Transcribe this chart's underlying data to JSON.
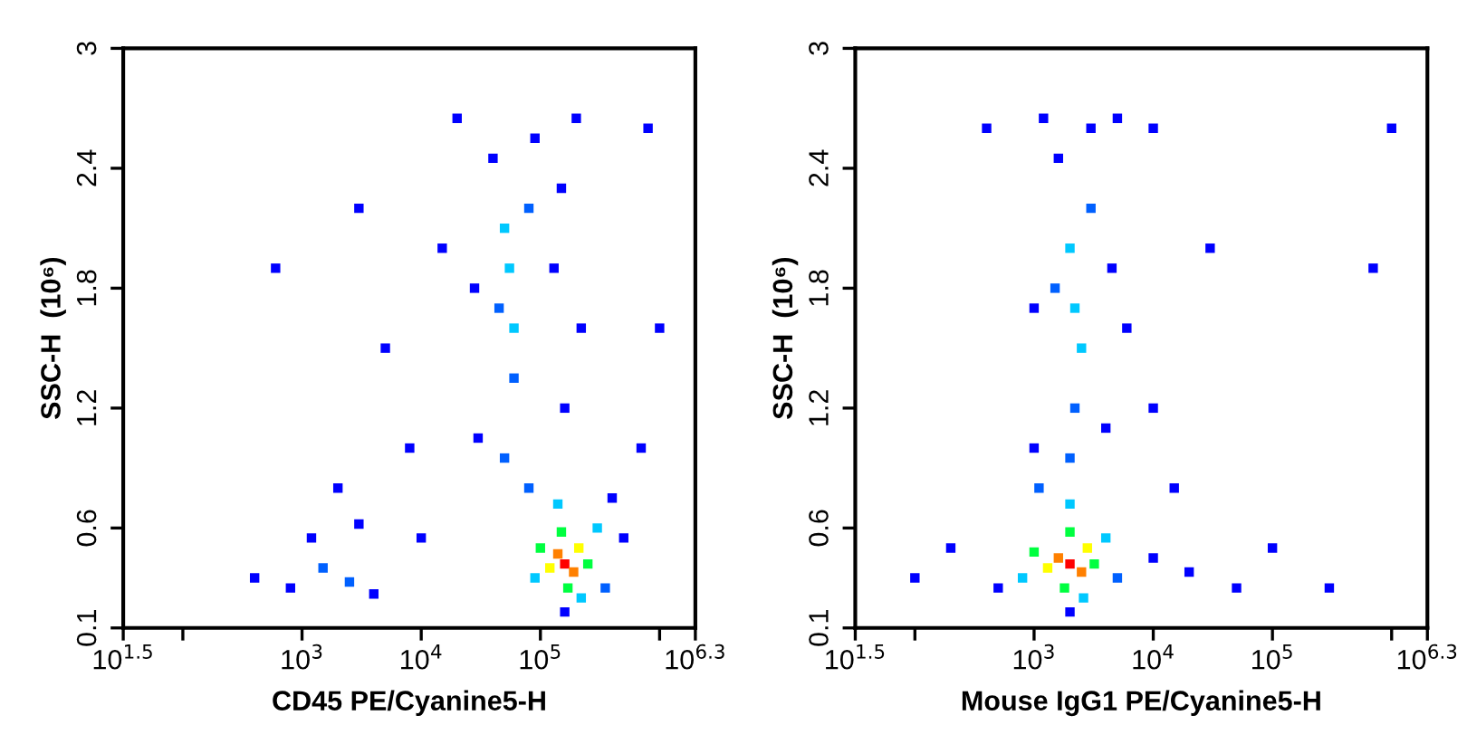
{
  "chart_data": [
    {
      "type": "scatter",
      "xlabel": "CD45 PE/Cyanine5-H",
      "ylabel": "SSC-H  (10⁶)",
      "log": "x",
      "marker": "square",
      "grid": false,
      "xlim": [
        31.6,
        1995262
      ],
      "ylim": [
        0.1,
        3
      ],
      "xticks": [
        {
          "value": 31.6,
          "label": "10$^{1.5}$"
        },
        {
          "value": 100,
          "label": null
        },
        {
          "value": 1000,
          "label": "10$^{3}$"
        },
        {
          "value": 10000,
          "label": "10$^{4}$"
        },
        {
          "value": 100000,
          "label": "10$^{5}$"
        },
        {
          "value": 1000000,
          "label": null
        },
        {
          "value": 1995262,
          "label": "10$^{6.3}$"
        }
      ],
      "yticks": [
        0.1,
        0.6,
        1.2,
        1.8,
        2.4,
        3
      ],
      "x": [
        160000,
        140000,
        190000,
        120000,
        210000,
        150000,
        100000,
        250000,
        170000,
        140000,
        90000,
        300000,
        220000,
        80000,
        350000,
        160000,
        400000,
        55000,
        60000,
        50000,
        60000,
        45000,
        80000,
        40000,
        90000,
        28000,
        130000,
        150000,
        20000,
        200000,
        30000,
        160000,
        220000,
        50000,
        1500,
        2500,
        1200,
        3000,
        800,
        4000,
        2000,
        8000,
        5000,
        400,
        10000,
        3000,
        600,
        500000,
        700000,
        1000000,
        800000,
        15000
      ],
      "values": [
        0.42,
        0.47,
        0.38,
        0.4,
        0.5,
        0.58,
        0.5,
        0.42,
        0.3,
        0.72,
        0.35,
        0.6,
        0.25,
        0.8,
        0.3,
        0.18,
        0.75,
        1.9,
        1.6,
        2.1,
        1.35,
        1.7,
        2.2,
        2.45,
        2.55,
        1.8,
        1.9,
        2.3,
        2.65,
        2.65,
        1.05,
        1.2,
        1.6,
        0.95,
        0.4,
        0.33,
        0.55,
        0.62,
        0.3,
        0.27,
        0.8,
        1.0,
        1.5,
        0.35,
        0.55,
        2.2,
        1.9,
        0.55,
        1.0,
        1.6,
        2.6,
        2.0
      ],
      "colors": [
        "#ff0000",
        "#ff8000",
        "#ff8000",
        "#ffff00",
        "#ffff00",
        "#00ff40",
        "#00ff40",
        "#00ff40",
        "#00ff40",
        "#00c8ff",
        "#00c8ff",
        "#00c8ff",
        "#00c8ff",
        "#0060ff",
        "#0060ff",
        "#0000ff",
        "#0000ff",
        "#00c8ff",
        "#00c8ff",
        "#00c8ff",
        "#0060ff",
        "#0060ff",
        "#0060ff",
        "#0000ff",
        "#0000ff",
        "#0000ff",
        "#0000ff",
        "#0000ff",
        "#0000ff",
        "#0000ff",
        "#0000ff",
        "#0000ff",
        "#0000ff",
        "#0060ff",
        "#0060ff",
        "#0060ff",
        "#0000ff",
        "#0000ff",
        "#0000ff",
        "#0000ff",
        "#0000ff",
        "#0000ff",
        "#0000ff",
        "#0000ff",
        "#0000ff",
        "#0000ff",
        "#0000ff",
        "#0000ff",
        "#0000ff",
        "#0000ff",
        "#0000ff",
        "#0000ff"
      ]
    },
    {
      "type": "scatter",
      "xlabel": "Mouse IgG1 PE/Cyanine5-H",
      "ylabel": "SSC-H  (10⁶)",
      "log": "x",
      "marker": "square",
      "grid": false,
      "xlim": [
        31.6,
        1995262
      ],
      "ylim": [
        0.1,
        3
      ],
      "xticks": [
        {
          "value": 31.6,
          "label": "10$^{1.5}$"
        },
        {
          "value": 100,
          "label": null
        },
        {
          "value": 1000,
          "label": "10$^{3}$"
        },
        {
          "value": 10000,
          "label": "10$^{4}$"
        },
        {
          "value": 100000,
          "label": "10$^{5}$"
        },
        {
          "value": 1000000,
          "label": null
        },
        {
          "value": 1995262,
          "label": "10$^{6.3}$"
        }
      ],
      "yticks": [
        0.1,
        0.6,
        1.2,
        1.8,
        2.4,
        3
      ],
      "x": [
        2000,
        1600,
        2500,
        1300,
        2800,
        2000,
        1000,
        3200,
        1800,
        2000,
        800,
        4000,
        2600,
        1100,
        5000,
        2000,
        500,
        2200,
        2500,
        2000,
        2200,
        1500,
        3000,
        1600,
        3000,
        1000,
        4500,
        1200,
        5000,
        1000,
        4000,
        6000,
        2000,
        100,
        200,
        10000,
        20000,
        50000,
        10000,
        30000,
        100000,
        300000,
        1000000,
        700000,
        400,
        15000,
        10000
      ],
      "values": [
        0.42,
        0.45,
        0.38,
        0.4,
        0.5,
        0.58,
        0.48,
        0.42,
        0.3,
        0.72,
        0.35,
        0.55,
        0.25,
        0.8,
        0.35,
        0.18,
        0.3,
        1.7,
        1.5,
        2.0,
        1.2,
        1.8,
        2.2,
        2.45,
        2.6,
        1.7,
        1.9,
        2.65,
        2.65,
        1.0,
        1.1,
        1.6,
        0.95,
        0.35,
        0.5,
        0.45,
        0.38,
        0.3,
        1.2,
        2.0,
        0.5,
        0.3,
        2.6,
        1.9,
        2.6,
        0.8,
        2.6
      ],
      "colors": [
        "#ff0000",
        "#ff8000",
        "#ff8000",
        "#ffff00",
        "#ffff00",
        "#00ff40",
        "#00ff40",
        "#00ff40",
        "#00ff40",
        "#00c8ff",
        "#00c8ff",
        "#00c8ff",
        "#00c8ff",
        "#0060ff",
        "#0060ff",
        "#0000ff",
        "#0000ff",
        "#00c8ff",
        "#00c8ff",
        "#00c8ff",
        "#0060ff",
        "#0060ff",
        "#0060ff",
        "#0000ff",
        "#0000ff",
        "#0000ff",
        "#0000ff",
        "#0000ff",
        "#0000ff",
        "#0000ff",
        "#0000ff",
        "#0000ff",
        "#0060ff",
        "#0000ff",
        "#0000ff",
        "#0000ff",
        "#0000ff",
        "#0000ff",
        "#0000ff",
        "#0000ff",
        "#0000ff",
        "#0000ff",
        "#0000ff",
        "#0000ff",
        "#0000ff",
        "#0000ff",
        "#0000ff"
      ]
    }
  ]
}
